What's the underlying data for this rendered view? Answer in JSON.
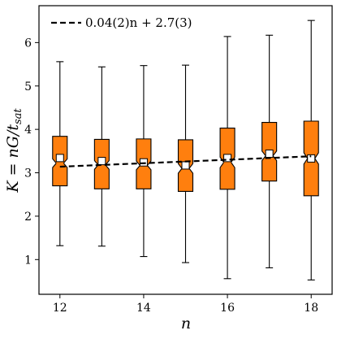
{
  "chart_data": {
    "type": "boxplot",
    "xlabel": "n",
    "ylabel": "K = nG/t_sat",
    "ylabel_parts": {
      "main": "K = nG/t",
      "sub": "sat"
    },
    "xlim": [
      11.5,
      18.5
    ],
    "ylim": [
      0.2,
      6.85
    ],
    "x_ticks": [
      12,
      14,
      16,
      18
    ],
    "x_tick_labels": [
      "12",
      "14",
      "16",
      "18"
    ],
    "y_ticks": [
      1,
      2,
      3,
      4,
      5,
      6
    ],
    "y_tick_labels": [
      "1",
      "2",
      "3",
      "4",
      "5",
      "6"
    ],
    "grid": false,
    "notched": true,
    "box_color": "#ff7f0e",
    "boxes": [
      {
        "x": 12,
        "whislo": 1.32,
        "q1": 2.7,
        "med": 3.22,
        "mean": 3.34,
        "q3": 3.84,
        "whishi": 5.56,
        "notch_lo": 3.12,
        "notch_hi": 3.32
      },
      {
        "x": 13,
        "whislo": 1.31,
        "q1": 2.63,
        "med": 3.18,
        "mean": 3.27,
        "q3": 3.77,
        "whishi": 5.44,
        "notch_lo": 3.08,
        "notch_hi": 3.28
      },
      {
        "x": 14,
        "whislo": 1.07,
        "q1": 2.63,
        "med": 3.17,
        "mean": 3.24,
        "q3": 3.78,
        "whishi": 5.47,
        "notch_lo": 3.07,
        "notch_hi": 3.27
      },
      {
        "x": 15,
        "whislo": 0.93,
        "q1": 2.57,
        "med": 3.1,
        "mean": 3.17,
        "q3": 3.76,
        "whishi": 5.48,
        "notch_lo": 2.99,
        "notch_hi": 3.21
      },
      {
        "x": 16,
        "whislo": 0.56,
        "q1": 2.62,
        "med": 3.24,
        "mean": 3.34,
        "q3": 4.03,
        "whishi": 6.14,
        "notch_lo": 3.12,
        "notch_hi": 3.36
      },
      {
        "x": 17,
        "whislo": 0.81,
        "q1": 2.81,
        "med": 3.39,
        "mean": 3.44,
        "q3": 4.16,
        "whishi": 6.17,
        "notch_lo": 3.28,
        "notch_hi": 3.5
      },
      {
        "x": 18,
        "whislo": 0.53,
        "q1": 2.47,
        "med": 3.33,
        "mean": 3.33,
        "q3": 4.19,
        "whishi": 6.51,
        "notch_lo": 3.2,
        "notch_hi": 3.46
      }
    ],
    "fit": {
      "label": "0.04(2)n + 2.7(3)",
      "slope": 0.04,
      "intercept": 2.66,
      "x_range": [
        12,
        18
      ],
      "line_style": "dashed",
      "color": "#000000"
    },
    "legend": {
      "placement": "top-left",
      "entries": [
        "0.04(2)n + 2.7(3)"
      ]
    }
  }
}
